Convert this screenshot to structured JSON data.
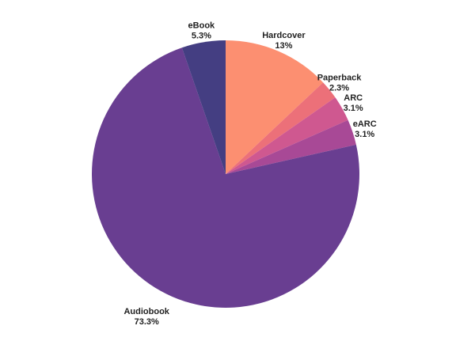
{
  "chart_data": {
    "type": "pie",
    "title": "",
    "start": "top",
    "direction": "clockwise",
    "slices": [
      {
        "label": "Hardcover",
        "value": 13,
        "display": "13%",
        "color": "#fc8f71"
      },
      {
        "label": "Paperback",
        "value": 2.3,
        "display": "2.3%",
        "color": "#ec7079"
      },
      {
        "label": "ARC",
        "value": 3.1,
        "display": "3.1%",
        "color": "#cf5890"
      },
      {
        "label": "eARC",
        "value": 3.1,
        "display": "3.1%",
        "color": "#a84996"
      },
      {
        "label": "Audiobook",
        "value": 73.3,
        "display": "73.3%",
        "color": "#693e91"
      },
      {
        "label": "eBook",
        "value": 5.3,
        "display": "5.3%",
        "color": "#443e82"
      }
    ]
  }
}
